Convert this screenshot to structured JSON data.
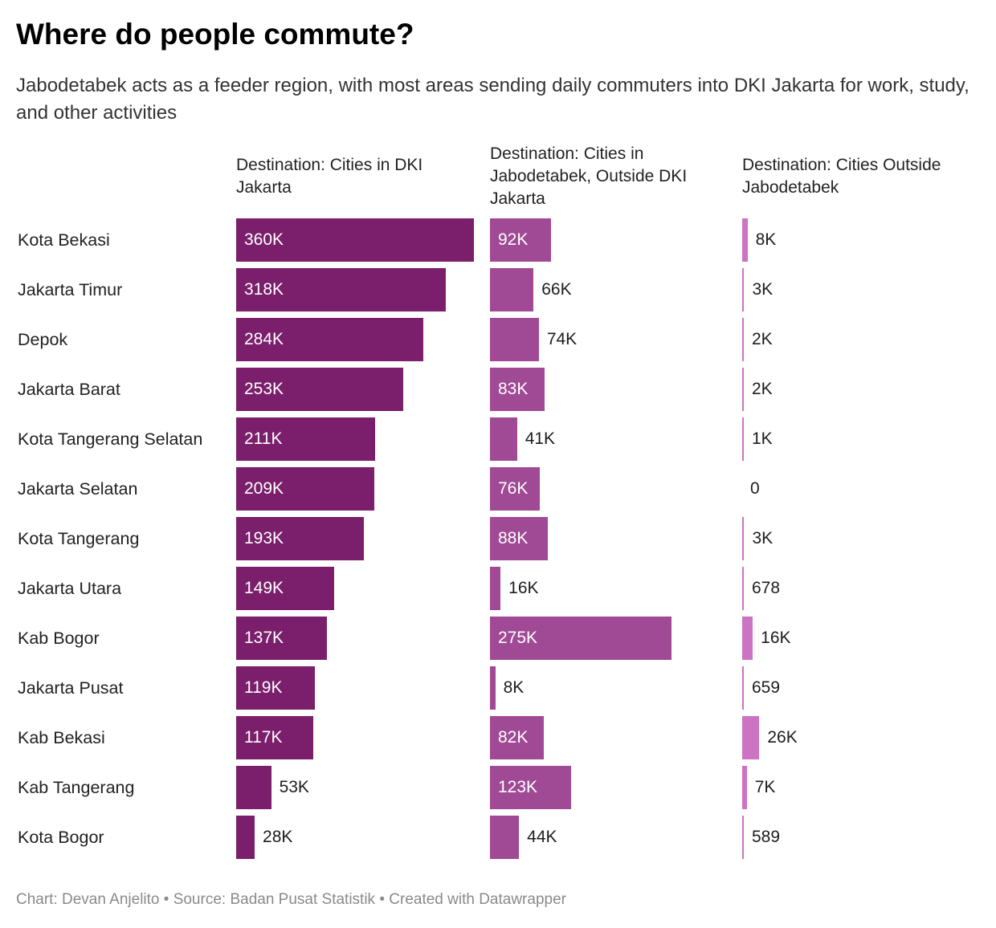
{
  "title": "Where do people commute?",
  "subtitle": "Jabodetabek acts as a feeder region, with most areas sending daily commuters into DKI Jakarta for work, study, and other activities",
  "footer": "Chart: Devan Anjelito • Source: Badan Pusat Statistik • Created with Datawrapper",
  "chart_data": {
    "type": "bar",
    "orientation": "horizontal",
    "layout": "small-multiples",
    "categories": [
      "Kota Bekasi",
      "Jakarta Timur",
      "Depok",
      "Jakarta Barat",
      "Kota Tangerang Selatan",
      "Jakarta Selatan",
      "Kota Tangerang",
      "Jakarta Utara",
      "Kab Bogor",
      "Jakarta Pusat",
      "Kab Bekasi",
      "Kab Tangerang",
      "Kota Bogor"
    ],
    "series": [
      {
        "name": "Destination: Cities in DKI Jakarta",
        "color": "#7b1f6c",
        "values": [
          360000,
          318000,
          284000,
          253000,
          211000,
          209000,
          193000,
          149000,
          137000,
          119000,
          117000,
          53000,
          28000
        ],
        "labels": [
          "360K",
          "318K",
          "284K",
          "253K",
          "211K",
          "209K",
          "193K",
          "149K",
          "137K",
          "119K",
          "117K",
          "53K",
          "28K"
        ]
      },
      {
        "name": "Destination: Cities in Jabodetabek, Outside DKI Jakarta",
        "color": "#a04a96",
        "values": [
          92000,
          66000,
          74000,
          83000,
          41000,
          76000,
          88000,
          16000,
          275000,
          8000,
          82000,
          123000,
          44000
        ],
        "labels": [
          "92K",
          "66K",
          "74K",
          "83K",
          "41K",
          "76K",
          "88K",
          "16K",
          "275K",
          "8K",
          "82K",
          "123K",
          "44K"
        ]
      },
      {
        "name": "Destination: Cities Outside Jabodetabek",
        "color": "#cc73c3",
        "values": [
          8000,
          3000,
          2000,
          2000,
          1000,
          0,
          3000,
          678,
          16000,
          659,
          26000,
          7000,
          589
        ],
        "labels": [
          "8K",
          "3K",
          "2K",
          "2K",
          "1K",
          "0",
          "3K",
          "678",
          "16K",
          "659",
          "26K",
          "7K",
          "589"
        ]
      }
    ],
    "grid": false,
    "legend": "none"
  }
}
